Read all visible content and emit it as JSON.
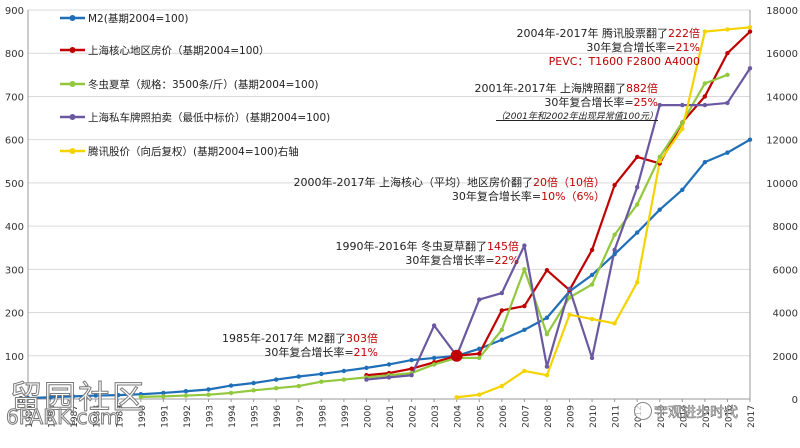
{
  "chart_data": {
    "type": "line",
    "left_axis": {
      "ylim": [
        0,
        900
      ],
      "ticks": [
        0,
        100,
        200,
        300,
        400,
        500,
        600,
        700,
        800,
        900
      ]
    },
    "right_axis": {
      "ylim": [
        0,
        18000
      ],
      "ticks": [
        0,
        2000,
        4000,
        6000,
        8000,
        10000,
        12000,
        14000,
        16000,
        18000
      ]
    },
    "x_tick_labels": [
      "1985",
      "1986",
      "1987",
      "1988",
      "1989",
      "1990",
      "1991",
      "1992",
      "1993",
      "1994",
      "1995",
      "1996",
      "1997",
      "1998",
      "1999",
      "2000",
      "2001",
      "2002",
      "2003",
      "2004",
      "2005",
      "2006",
      "2007",
      "2008",
      "2009",
      "2010",
      "2011",
      "2012",
      "2013",
      "2014",
      "2015",
      "2016",
      "2017"
    ],
    "series": [
      {
        "name": "M2(基期2004=100)",
        "color": "#1f6fb8",
        "axis": "left",
        "x": [
          1985,
          1986,
          1987,
          1988,
          1989,
          1990,
          1991,
          1992,
          1993,
          1994,
          1995,
          1996,
          1997,
          1998,
          1999,
          2000,
          2001,
          2002,
          2003,
          2004,
          2005,
          2006,
          2007,
          2008,
          2009,
          2010,
          2011,
          2012,
          2013,
          2014,
          2015,
          2016,
          2017
        ],
        "values": [
          2,
          4,
          6,
          8,
          9,
          11,
          14,
          18,
          22,
          31,
          37,
          45,
          52,
          58,
          65,
          72,
          80,
          90,
          95,
          100,
          116,
          137,
          160,
          188,
          249,
          287,
          335,
          385,
          438,
          484,
          548,
          570,
          600
        ]
      },
      {
        "name": "上海核心地区房价（基期2004=100）",
        "color": "#c00000",
        "axis": "left",
        "x": [
          2000,
          2001,
          2002,
          2003,
          2004,
          2005,
          2006,
          2007,
          2008,
          2009,
          2010,
          2011,
          2012,
          2013,
          2014,
          2015,
          2016,
          2017
        ],
        "values": [
          55,
          60,
          70,
          85,
          100,
          105,
          205,
          215,
          298,
          252,
          345,
          495,
          560,
          545,
          640,
          700,
          800,
          850
        ]
      },
      {
        "name": "冬虫夏草（规格：3500条/斤）(基期2004=100)",
        "color": "#92c83e",
        "axis": "left",
        "x": [
          1990,
          1991,
          1992,
          1993,
          1994,
          1995,
          1996,
          1997,
          1998,
          1999,
          2000,
          2001,
          2002,
          2003,
          2004,
          2005,
          2006,
          2007,
          2008,
          2009,
          2010,
          2011,
          2012,
          2013,
          2014,
          2015,
          2016
        ],
        "values": [
          5,
          6,
          8,
          10,
          14,
          20,
          25,
          30,
          40,
          45,
          50,
          55,
          60,
          80,
          95,
          95,
          160,
          300,
          150,
          235,
          265,
          380,
          450,
          560,
          640,
          730,
          750
        ]
      },
      {
        "name": "上海私车牌照拍卖（最低中标价）(基期2004=100)",
        "color": "#6a58a0",
        "axis": "left",
        "x": [
          2000,
          2001,
          2002,
          2003,
          2004,
          2005,
          2006,
          2007,
          2008,
          2009,
          2010,
          2011,
          2012,
          2013,
          2014,
          2015,
          2016,
          2017
        ],
        "values": [
          45,
          50,
          55,
          170,
          100,
          230,
          245,
          355,
          75,
          255,
          95,
          345,
          490,
          680,
          680,
          680,
          685,
          765
        ]
      },
      {
        "name": "腾讯股价（向后复权）(基期2004=100)右轴",
        "color": "#f5d300",
        "axis": "right",
        "x": [
          2004,
          2005,
          2006,
          2007,
          2008,
          2009,
          2010,
          2011,
          2012,
          2013,
          2014,
          2015,
          2016,
          2017
        ],
        "values": [
          80,
          200,
          600,
          1300,
          1100,
          3900,
          3700,
          3500,
          5400,
          11000,
          12500,
          17000,
          17100,
          17200
        ]
      }
    ],
    "annotations": [
      {
        "line1": "2004年-2017年 腾讯股票翻了",
        "highlight": "222倍",
        "line2": "30年复合增长率=",
        "line2_value": "21%",
        "line3": "PEVC：T1600 F2800 A4000"
      },
      {
        "line1": "2001年-2017年 上海牌照翻了",
        "highlight": "882倍",
        "line2": "30年复合增长率=",
        "line2_value": "25%",
        "line3": "（2001年和2002年出现异常值100元）"
      },
      {
        "line1": "2000年-2017年 上海核心（平均）地区房价翻了",
        "highlight": "20倍",
        "line1_tail": "（10倍）",
        "line2": "30年复合增长率=",
        "line2_value": "10%",
        "line2_tail": "（6%）"
      },
      {
        "line1": "1990年-2016年 冬虫夏草翻了",
        "highlight": "145倍",
        "line2": "30年复合增长率=",
        "line2_value": "22%"
      },
      {
        "line1": "1985年-2017年 M2翻了",
        "highlight": "303倍",
        "line2": "30年复合增长率=",
        "line2_value": "21%"
      }
    ]
  },
  "watermarks": {
    "left_cn": "留园社区",
    "left_en": "6PARK.com",
    "right": "宇观进步时代"
  }
}
